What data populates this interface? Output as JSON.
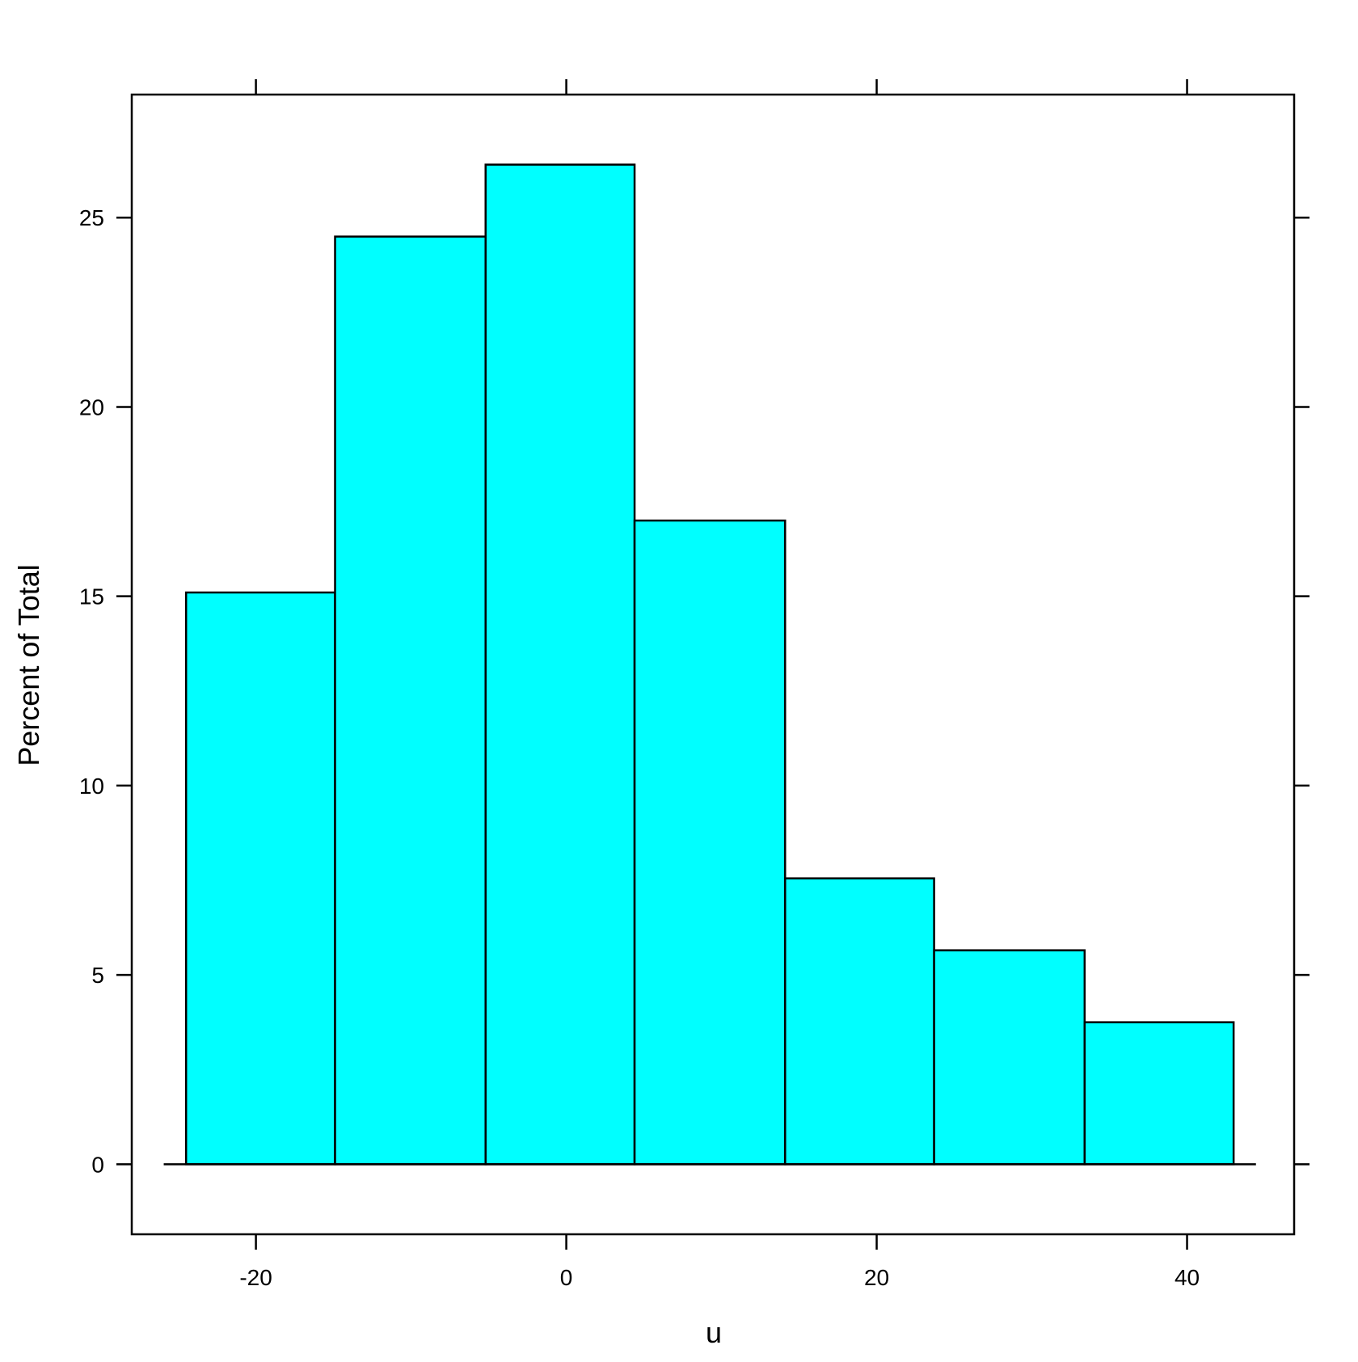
{
  "chart_data": {
    "type": "histogram",
    "title": "",
    "xlabel": "u",
    "ylabel": "Percent of Total",
    "bins": [
      {
        "x0": -24.5,
        "x1": -14.9,
        "value": 15.1
      },
      {
        "x0": -14.9,
        "x1": -5.2,
        "value": 24.5
      },
      {
        "x0": -5.2,
        "x1": 4.4,
        "value": 26.4
      },
      {
        "x0": 4.4,
        "x1": 14.1,
        "value": 17.0
      },
      {
        "x0": 14.1,
        "x1": 23.7,
        "value": 7.55
      },
      {
        "x0": 23.7,
        "x1": 33.4,
        "value": 5.65
      },
      {
        "x0": 33.4,
        "x1": 43.0,
        "value": 3.75
      }
    ],
    "xlim": [
      -28.0,
      46.9
    ],
    "ylim": [
      -1.85,
      28.25
    ],
    "x_ticks": [
      -20,
      0,
      20,
      40
    ],
    "x_tick_labels": [
      "-20",
      "0",
      "20",
      "40"
    ],
    "y_ticks": [
      0,
      5,
      10,
      15,
      20,
      25
    ],
    "y_tick_labels": [
      "0",
      "5",
      "10",
      "15",
      "20",
      "25"
    ],
    "grid": false,
    "legend": "none",
    "bar_color": "#00FFFF",
    "edge_color": "#000000"
  }
}
